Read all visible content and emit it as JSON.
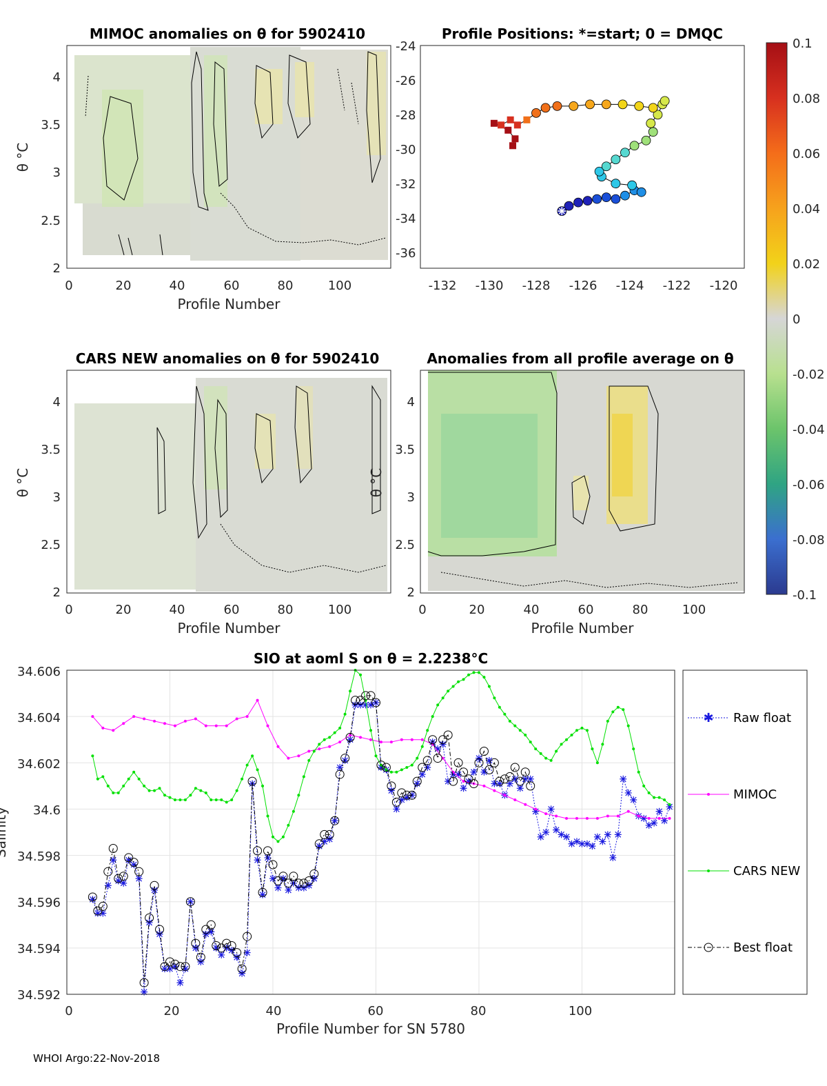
{
  "footer": "WHOI Argo:22-Nov-2018",
  "panels": {
    "mimoc": {
      "title": "MIMOC anomalies on θ  for 5902410",
      "xlabel": "Profile Number",
      "ylabel": "θ °C",
      "xticks": [
        "0",
        "20",
        "40",
        "60",
        "80",
        "100"
      ],
      "yticks": [
        "2",
        "2.5",
        "3",
        "3.5",
        "4"
      ]
    },
    "positions": {
      "title": "Profile Positions: *=start; 0 = DMQC",
      "xticks": [
        "-132",
        "-130",
        "-128",
        "-126",
        "-124",
        "-122",
        "-120"
      ],
      "yticks": [
        "-24",
        "-26",
        "-28",
        "-30",
        "-32",
        "-34",
        "-36"
      ]
    },
    "cars": {
      "title": "CARS NEW anomalies on θ for 5902410",
      "xlabel": "Profile Number",
      "ylabel": "θ °C",
      "xticks": [
        "0",
        "20",
        "40",
        "60",
        "80",
        "100"
      ],
      "yticks": [
        "2",
        "2.5",
        "3",
        "3.5",
        "4"
      ]
    },
    "allavg": {
      "title": "Anomalies from all profile average on θ",
      "xlabel": "Profile Number",
      "ylabel": "θ °C",
      "xticks": [
        "0",
        "20",
        "40",
        "60",
        "80",
        "100"
      ],
      "yticks": [
        "2",
        "2.5",
        "3",
        "3.5",
        "4"
      ]
    },
    "colorbar": {
      "ticks": [
        "0.1",
        "0.08",
        "0.06",
        "0.04",
        "0.02",
        "0",
        "-0.02",
        "-0.04",
        "-0.06",
        "-0.08",
        "-0.1"
      ],
      "colors": [
        "#b30e1e",
        "#e2441a",
        "#f68a1c",
        "#f7c418",
        "#efe76a",
        "#d6d6d6",
        "#bfe39a",
        "#7fce7f",
        "#3fae82",
        "#3e7bc8",
        "#2f3e9a"
      ]
    }
  },
  "chart_data": {
    "type": "line",
    "title": "SIO at aoml S on θ = 2.2238°C",
    "xlabel": "Profile Number for SN 5780",
    "ylabel": "Salinity",
    "xlim": [
      0,
      118
    ],
    "ylim": [
      34.592,
      34.606
    ],
    "xticks": [
      "0",
      "20",
      "40",
      "60",
      "80",
      "100"
    ],
    "yticks": [
      "34.592",
      "34.594",
      "34.596",
      "34.598",
      "34.6",
      "34.602",
      "34.604",
      "34.606"
    ],
    "grid": true,
    "legend_position": "right-outside",
    "series": [
      {
        "name": "Raw float",
        "color": "#1a1adf",
        "marker": "asterisk",
        "line": "dotted",
        "x": [
          5,
          6,
          7,
          8,
          9,
          10,
          11,
          12,
          13,
          14,
          15,
          16,
          17,
          18,
          19,
          20,
          21,
          22,
          23,
          24,
          25,
          26,
          27,
          28,
          29,
          30,
          31,
          32,
          33,
          34,
          35,
          36,
          37,
          38,
          39,
          40,
          41,
          42,
          43,
          44,
          45,
          46,
          47,
          48,
          49,
          50,
          51,
          52,
          53,
          54,
          55,
          56,
          57,
          58,
          59,
          60,
          61,
          62,
          63,
          64,
          65,
          66,
          67,
          68,
          69,
          70,
          71,
          72,
          73,
          74,
          75,
          76,
          77,
          78,
          79,
          80,
          81,
          82,
          83,
          84,
          85,
          86,
          87,
          88,
          89,
          90,
          91,
          92,
          93,
          94,
          95,
          96,
          97,
          98,
          99,
          100,
          101,
          102,
          103,
          104,
          105,
          106,
          107,
          108,
          109,
          110,
          111,
          112,
          113,
          114,
          115,
          116,
          117
        ],
        "y": [
          34.5961,
          34.5955,
          34.5955,
          34.5967,
          34.5978,
          34.5969,
          34.5968,
          34.5978,
          34.5976,
          34.597,
          34.5921,
          34.5951,
          34.5965,
          34.5946,
          34.5931,
          34.5931,
          34.5932,
          34.5925,
          34.5931,
          34.596,
          34.594,
          34.5934,
          34.5946,
          34.5947,
          34.594,
          34.5937,
          34.594,
          34.5939,
          34.5936,
          34.5929,
          34.5938,
          34.6011,
          34.5978,
          34.5963,
          34.5979,
          34.597,
          34.5966,
          34.597,
          34.5965,
          34.5968,
          34.5966,
          34.5966,
          34.5967,
          34.597,
          34.5984,
          34.5986,
          34.5987,
          34.5995,
          34.6018,
          34.6021,
          34.603,
          34.6045,
          34.6045,
          34.6045,
          34.6045,
          34.6046,
          34.6018,
          34.6017,
          34.6008,
          34.6,
          34.6004,
          34.6005,
          34.6006,
          34.6011,
          34.6015,
          34.6018,
          34.6029,
          34.6026,
          34.6028,
          34.6012,
          34.6015,
          34.6015,
          34.6009,
          34.6012,
          34.6016,
          34.6022,
          34.6016,
          34.6021,
          34.6011,
          34.6011,
          34.6006,
          34.6011,
          34.6013,
          34.6009,
          34.6013,
          34.6013,
          34.5999,
          34.5988,
          34.599,
          34.6,
          34.5991,
          34.5989,
          34.5988,
          34.5985,
          34.5986,
          34.5985,
          34.5985,
          34.5984,
          34.5988,
          34.5986,
          34.5989,
          34.5979,
          34.5989,
          34.6013,
          34.6007,
          34.6004,
          34.5997,
          34.5996,
          34.5993,
          34.5994,
          34.5999,
          34.5995,
          34.6001
        ],
        "legend": "Raw float"
      },
      {
        "name": "MIMOC",
        "color": "#ff00ff",
        "marker": "dot",
        "line": "solid",
        "x": [
          5,
          7,
          9,
          11,
          13,
          15,
          17,
          19,
          21,
          23,
          25,
          27,
          29,
          31,
          33,
          35,
          37,
          39,
          41,
          43,
          45,
          47,
          49,
          51,
          53,
          55,
          57,
          59,
          61,
          63,
          65,
          67,
          69,
          71,
          73,
          75,
          77,
          79,
          81,
          83,
          85,
          87,
          89,
          91,
          93,
          95,
          97,
          99,
          101,
          103,
          105,
          107,
          109,
          111,
          113,
          115,
          117
        ],
        "y": [
          34.604,
          34.6035,
          34.6034,
          34.6037,
          34.604,
          34.6039,
          34.6038,
          34.6037,
          34.6036,
          34.6038,
          34.6039,
          34.6036,
          34.6036,
          34.6036,
          34.6039,
          34.604,
          34.6047,
          34.6036,
          34.6027,
          34.6022,
          34.6023,
          34.6025,
          34.6026,
          34.6027,
          34.6029,
          34.6032,
          34.6031,
          34.603,
          34.6029,
          34.6029,
          34.603,
          34.603,
          34.603,
          34.6028,
          34.6022,
          34.6016,
          34.6012,
          34.6011,
          34.601,
          34.6008,
          34.6006,
          34.6004,
          34.6002,
          34.6,
          34.5998,
          34.5997,
          34.5996,
          34.5996,
          34.5996,
          34.5996,
          34.5997,
          34.5997,
          34.5999,
          34.5997,
          34.5996,
          34.5996,
          34.5996
        ],
        "legend": "MIMOC"
      },
      {
        "name": "CARS NEW",
        "color": "#00e000",
        "marker": "dot",
        "line": "solid",
        "x": [
          5,
          6,
          7,
          8,
          9,
          10,
          11,
          12,
          13,
          14,
          15,
          16,
          17,
          18,
          19,
          20,
          21,
          22,
          23,
          24,
          25,
          26,
          27,
          28,
          29,
          30,
          31,
          32,
          33,
          34,
          35,
          36,
          37,
          38,
          39,
          40,
          41,
          42,
          43,
          44,
          45,
          46,
          47,
          48,
          49,
          50,
          51,
          52,
          53,
          54,
          55,
          56,
          57,
          58,
          59,
          60,
          61,
          62,
          63,
          64,
          65,
          66,
          67,
          68,
          69,
          70,
          71,
          72,
          73,
          74,
          75,
          76,
          77,
          78,
          79,
          80,
          81,
          82,
          83,
          84,
          85,
          86,
          87,
          88,
          89,
          90,
          91,
          92,
          93,
          94,
          95,
          96,
          97,
          98,
          99,
          100,
          101,
          102,
          103,
          104,
          105,
          106,
          107,
          108,
          109,
          110,
          111,
          112,
          113,
          114,
          115,
          116,
          117
        ],
        "y": [
          34.6023,
          34.6013,
          34.6014,
          34.601,
          34.6007,
          34.6007,
          34.601,
          34.6013,
          34.6016,
          34.6013,
          34.601,
          34.6008,
          34.6008,
          34.6009,
          34.6006,
          34.6005,
          34.6004,
          34.6004,
          34.6004,
          34.6006,
          34.6009,
          34.6008,
          34.6007,
          34.6004,
          34.6004,
          34.6004,
          34.6003,
          34.6004,
          34.6008,
          34.6013,
          34.6019,
          34.6023,
          34.6017,
          34.601,
          34.5997,
          34.5988,
          34.5986,
          34.5988,
          34.5993,
          34.5999,
          34.6006,
          34.6014,
          34.6021,
          34.6025,
          34.6028,
          34.603,
          34.6031,
          34.6033,
          34.6035,
          34.6041,
          34.6051,
          34.606,
          34.6058,
          34.6047,
          34.6034,
          34.6023,
          34.6019,
          34.6017,
          34.6016,
          34.6016,
          34.6017,
          34.6018,
          34.6019,
          34.6022,
          34.6027,
          34.6034,
          34.604,
          34.6045,
          34.6048,
          34.6051,
          34.6053,
          34.6055,
          34.6056,
          34.6058,
          34.6059,
          34.6059,
          34.6057,
          34.6053,
          34.6048,
          34.6044,
          34.6041,
          34.6038,
          34.6036,
          34.6034,
          34.6032,
          34.6029,
          34.6026,
          34.6024,
          34.6022,
          34.6021,
          34.6025,
          34.6028,
          34.603,
          34.6032,
          34.6034,
          34.6035,
          34.6034,
          34.6026,
          34.602,
          34.6028,
          34.6038,
          34.6042,
          34.6044,
          34.6043,
          34.6036,
          34.6026,
          34.6016,
          34.601,
          34.6007,
          34.6005,
          34.6005,
          34.6004,
          34.6002
        ],
        "legend": "CARS NEW"
      },
      {
        "name": "Best float",
        "color": "#000000",
        "marker": "circle",
        "line": "dashdot",
        "x": [
          5,
          6,
          7,
          8,
          9,
          10,
          11,
          12,
          13,
          14,
          15,
          16,
          17,
          18,
          19,
          20,
          21,
          22,
          23,
          24,
          25,
          26,
          27,
          28,
          29,
          30,
          31,
          32,
          33,
          34,
          35,
          36,
          37,
          38,
          39,
          40,
          41,
          42,
          43,
          44,
          45,
          46,
          47,
          48,
          49,
          50,
          51,
          52,
          53,
          54,
          55,
          56,
          57,
          58,
          59,
          60,
          61,
          62,
          63,
          64,
          65,
          66,
          67,
          68,
          69,
          70,
          71,
          72,
          73,
          74,
          75,
          76,
          77,
          78,
          79,
          80,
          81,
          82,
          83,
          84,
          85,
          86,
          87,
          88,
          89,
          90
        ],
        "y": [
          34.5962,
          34.5956,
          34.5958,
          34.5973,
          34.5983,
          34.597,
          34.5971,
          34.5979,
          34.5977,
          34.5973,
          34.5925,
          34.5953,
          34.5967,
          34.5948,
          34.5932,
          34.5934,
          34.5933,
          34.5932,
          34.5932,
          34.596,
          34.5942,
          34.5936,
          34.5948,
          34.595,
          34.5941,
          34.594,
          34.5942,
          34.5941,
          34.5938,
          34.5931,
          34.5945,
          34.6012,
          34.5982,
          34.5964,
          34.5982,
          34.5976,
          34.5969,
          34.5971,
          34.5968,
          34.5971,
          34.5968,
          34.5968,
          34.5969,
          34.5972,
          34.5985,
          34.5989,
          34.5989,
          34.5995,
          34.6015,
          34.6022,
          34.6031,
          34.6047,
          34.6047,
          34.6049,
          34.6049,
          34.6046,
          34.6019,
          34.6018,
          34.601,
          34.6003,
          34.6007,
          34.6006,
          34.6006,
          34.6012,
          34.6018,
          34.6021,
          34.603,
          34.6022,
          34.603,
          34.6032,
          34.6012,
          34.602,
          34.6016,
          34.6013,
          34.6011,
          34.602,
          34.6025,
          34.6017,
          34.602,
          34.6012,
          34.6013,
          34.6014,
          34.6018,
          34.6012,
          34.6016,
          34.601
        ],
        "legend": "Best float"
      }
    ]
  },
  "track": {
    "start": [
      -126.9,
      -33.6
    ],
    "points": [
      [
        -126.9,
        -33.6
      ],
      [
        -126.6,
        -33.3
      ],
      [
        -126.2,
        -33.1
      ],
      [
        -125.8,
        -33.0
      ],
      [
        -125.4,
        -32.9
      ],
      [
        -125.0,
        -32.8
      ],
      [
        -124.6,
        -32.9
      ],
      [
        -124.2,
        -32.7
      ],
      [
        -123.8,
        -32.4
      ],
      [
        -123.5,
        -32.5
      ],
      [
        -123.9,
        -32.1
      ],
      [
        -124.6,
        -32.0
      ],
      [
        -125.2,
        -31.6
      ],
      [
        -125.3,
        -31.3
      ],
      [
        -125.0,
        -31.0
      ],
      [
        -124.6,
        -30.6
      ],
      [
        -124.2,
        -30.2
      ],
      [
        -123.8,
        -29.8
      ],
      [
        -123.3,
        -29.5
      ],
      [
        -123.0,
        -29.0
      ],
      [
        -123.1,
        -28.5
      ],
      [
        -122.8,
        -28.0
      ],
      [
        -122.6,
        -27.4
      ],
      [
        -122.5,
        -27.2
      ],
      [
        -123.0,
        -27.6
      ],
      [
        -123.6,
        -27.5
      ],
      [
        -124.3,
        -27.4
      ],
      [
        -125.0,
        -27.4
      ],
      [
        -125.7,
        -27.4
      ],
      [
        -126.4,
        -27.5
      ],
      [
        -127.1,
        -27.5
      ],
      [
        -127.6,
        -27.6
      ],
      [
        -128.0,
        -27.9
      ],
      [
        -128.4,
        -28.3
      ],
      [
        -128.8,
        -28.6
      ],
      [
        -129.1,
        -28.3
      ],
      [
        -129.5,
        -28.6
      ],
      [
        -129.8,
        -28.5
      ],
      [
        -129.2,
        -28.9
      ],
      [
        -128.9,
        -29.4
      ],
      [
        -129.0,
        -29.8
      ]
    ]
  }
}
